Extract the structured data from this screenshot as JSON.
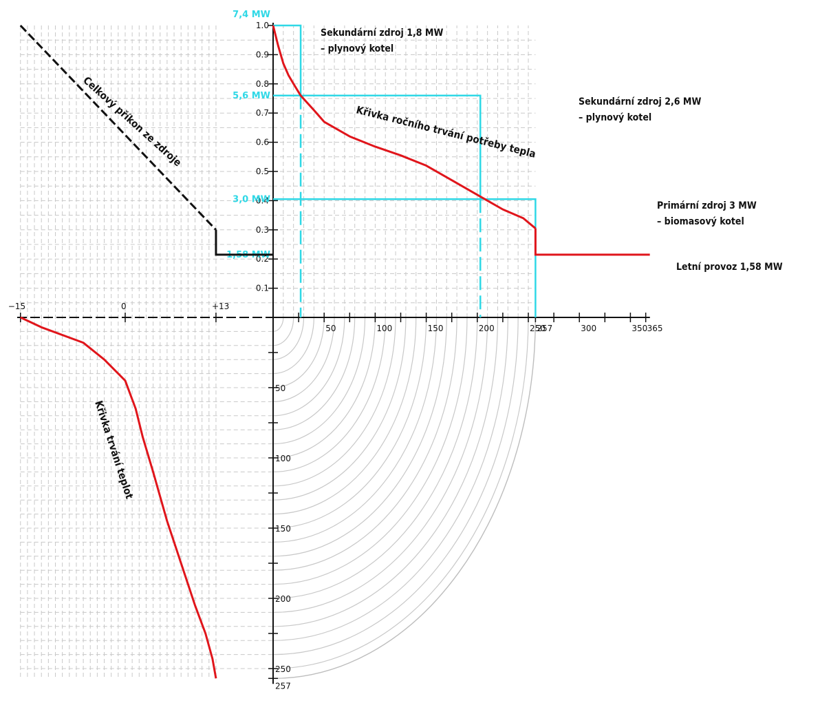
{
  "chart_data": {
    "type": "line",
    "title": "",
    "colors": {
      "load_curve": "#e0151b",
      "sources": "#2fd8e6",
      "power_line": "#000000",
      "grid": "#c8c8c8"
    },
    "heat_demand_curve": {
      "name": "Křivka ročního trvání potřeby tepla",
      "x_unit": "days",
      "points": [
        [
          0,
          1.0
        ],
        [
          5,
          0.93
        ],
        [
          10,
          0.87
        ],
        [
          15,
          0.83
        ],
        [
          20,
          0.8
        ],
        [
          27,
          0.76
        ],
        [
          40,
          0.71
        ],
        [
          50,
          0.67
        ],
        [
          75,
          0.62
        ],
        [
          100,
          0.585
        ],
        [
          125,
          0.555
        ],
        [
          150,
          0.52
        ],
        [
          175,
          0.47
        ],
        [
          200,
          0.42
        ],
        [
          210,
          0.4
        ],
        [
          225,
          0.37
        ],
        [
          245,
          0.34
        ],
        [
          257,
          0.305
        ]
      ]
    },
    "summer_operation": {
      "label": "Letní provoz 1,58 MW",
      "x": [
        257,
        365
      ],
      "y": 0.215
    },
    "temperature_duration_curve": {
      "name": "Křivka trvání teplot",
      "points": [
        [
          -15,
          0
        ],
        [
          -12,
          7
        ],
        [
          -6,
          18
        ],
        [
          -3,
          30
        ],
        [
          0,
          45
        ],
        [
          1.5,
          65
        ],
        [
          2.5,
          85
        ],
        [
          4,
          110
        ],
        [
          6,
          145
        ],
        [
          8,
          175
        ],
        [
          10,
          205
        ],
        [
          11.5,
          225
        ],
        [
          12.5,
          243
        ],
        [
          13,
          257
        ]
      ]
    },
    "total_power_line": {
      "name": "Celkový příkon ze zdroje",
      "points": [
        [
          -15,
          1.0
        ],
        [
          13,
          0.3
        ]
      ],
      "step": [
        [
          13,
          0.3
        ],
        [
          13,
          0.215
        ],
        [
          0,
          0.215
        ]
      ]
    },
    "sources": [
      {
        "label_line1": "Sekundární zdroj 1,8 MW",
        "label_line2": "– plynový kotel",
        "x_end": 27,
        "y_top": 1.0,
        "y_bottom": 0.76
      },
      {
        "label_line1": "Sekundární zdroj 2,6 MW",
        "label_line2": "– plynový kotel",
        "x_end": 203,
        "y_top": 0.76,
        "y_bottom": 0.405
      },
      {
        "label_line1": "Primární zdroj 3 MW",
        "label_line2": "– biomasový kotel",
        "x_end": 257,
        "y_top": 0.405,
        "y_bottom": 0
      }
    ],
    "mw_labels": [
      {
        "text": "7,4 MW",
        "y": 1.0
      },
      {
        "text": "5,6 MW",
        "y": 0.76
      },
      {
        "text": "3,0 MW",
        "y": 0.405
      },
      {
        "text": "1,58 MW",
        "y": 0.215
      }
    ],
    "x_days_ticks": [
      "50",
      "100",
      "150",
      "200",
      "250",
      "257",
      "300",
      "350",
      "365"
    ],
    "x_days_values": [
      50,
      100,
      150,
      200,
      250,
      257,
      300,
      350,
      365
    ],
    "temp_ticks": [
      "−15",
      "0",
      "+13"
    ],
    "temp_values": [
      -15,
      0,
      13
    ],
    "y_ticks": [
      "0.1",
      "0.2",
      "0.3",
      "0.4",
      "0.5",
      "0.6",
      "0.7",
      "0.8",
      "0.9",
      "1.0"
    ],
    "y_values": [
      0.1,
      0.2,
      0.3,
      0.4,
      0.5,
      0.6,
      0.7,
      0.8,
      0.9,
      1.0
    ],
    "days_down_ticks": [
      "50",
      "100",
      "150",
      "200",
      "250",
      "257"
    ],
    "days_down_values": [
      50,
      100,
      150,
      200,
      250,
      257
    ],
    "xlim_days": [
      0,
      365
    ],
    "xlim_temp": [
      -15,
      13
    ],
    "ylim": [
      0,
      1.0
    ],
    "grid": true
  }
}
